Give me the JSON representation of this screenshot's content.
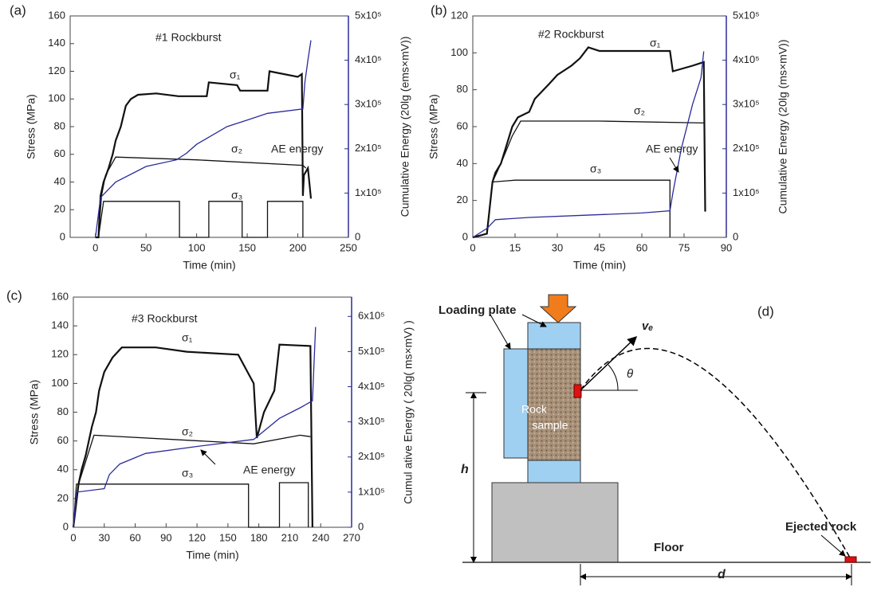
{
  "chart_data": [
    {
      "type": "line",
      "panel_label": "(a)",
      "title": "#1 Rockburst",
      "x_label": "Time (min)",
      "y_label": "Stress (MPa)",
      "y2_label": "Cumulative Energy (20lg (ems×mV))",
      "xlim": [
        -25,
        250
      ],
      "xticks": [
        0,
        50,
        100,
        150,
        200,
        250
      ],
      "ylim": [
        0,
        160
      ],
      "yticks": [
        0,
        20,
        40,
        60,
        80,
        100,
        120,
        140,
        160
      ],
      "y2lim": [
        0,
        500000
      ],
      "y2ticks": [
        0,
        {
          "value": 100000,
          "label": "1x10⁵"
        },
        {
          "value": 200000,
          "label": "2x10⁵"
        },
        {
          "value": 300000,
          "label": "3x10⁵"
        },
        {
          "value": 400000,
          "label": "4x10⁵"
        },
        {
          "value": 500000,
          "label": "5x10⁵"
        }
      ],
      "series": [
        {
          "name": "σ₁",
          "color": "#111111",
          "x": [
            0,
            3,
            5,
            8,
            13,
            17,
            20,
            25,
            30,
            35,
            42,
            60,
            82,
            110,
            112,
            140,
            143,
            170,
            172,
            200,
            204,
            205,
            206,
            210,
            213
          ],
          "values": [
            0,
            0,
            30,
            40,
            50,
            60,
            70,
            80,
            95,
            100,
            103,
            104,
            102,
            102,
            112,
            110,
            106,
            106,
            120,
            116,
            118,
            30,
            45,
            50,
            28
          ]
        },
        {
          "name": "σ₂",
          "color": "#111111",
          "x": [
            0,
            3,
            6,
            10,
            20,
            100,
            205,
            208
          ],
          "values": [
            0,
            0,
            30,
            45,
            58,
            56,
            52,
            50
          ]
        },
        {
          "name": "σ₃",
          "color": "#111111",
          "x": [
            0,
            3,
            8,
            83,
            83,
            112,
            112,
            145,
            145,
            170,
            170,
            205,
            205
          ],
          "values": [
            0,
            0,
            26,
            26,
            0,
            0,
            26,
            26,
            0,
            0,
            26,
            26,
            0
          ]
        },
        {
          "name": "AE energy",
          "color": "#2b2b9a",
          "axis": "y2",
          "x": [
            0,
            5,
            20,
            50,
            80,
            90,
            100,
            130,
            150,
            170,
            205,
            207,
            210,
            213
          ],
          "values": [
            0,
            90000,
            125000,
            160000,
            175000,
            190000,
            210000,
            250000,
            265000,
            280000,
            290000,
            350000,
            400000,
            445000
          ]
        }
      ]
    },
    {
      "type": "line",
      "panel_label": "(b)",
      "title": "#2 Rockburst",
      "x_label": "Time (min)",
      "y_label": "Stress (MPa)",
      "y2_label": "Cumulative Energy (20lg (ms×mV))",
      "xlim": [
        0,
        90
      ],
      "xticks": [
        0,
        15,
        30,
        45,
        60,
        75,
        90
      ],
      "ylim": [
        0,
        120
      ],
      "yticks": [
        0,
        20,
        40,
        60,
        80,
        100,
        120
      ],
      "y2lim": [
        0,
        500000
      ],
      "y2ticks": [
        0,
        {
          "value": 100000,
          "label": "1x10⁵"
        },
        {
          "value": 200000,
          "label": "2x10⁵"
        },
        {
          "value": 300000,
          "label": "3x10⁵"
        },
        {
          "value": 400000,
          "label": "4x10⁵"
        },
        {
          "value": 500000,
          "label": "5x10⁵"
        }
      ],
      "series": [
        {
          "name": "σ₁",
          "color": "#111111",
          "x": [
            0,
            5,
            7,
            8,
            10,
            12,
            14,
            16,
            20,
            22,
            27,
            30,
            35,
            38,
            41,
            45,
            70,
            71,
            78,
            82,
            82.5
          ],
          "values": [
            0,
            2,
            30,
            35,
            40,
            50,
            60,
            65,
            68,
            75,
            83,
            88,
            93,
            97,
            103,
            101,
            101,
            90,
            93,
            95,
            14
          ]
        },
        {
          "name": "σ₂",
          "color": "#111111",
          "x": [
            0,
            5,
            7,
            10,
            14,
            17,
            45,
            82
          ],
          "values": [
            0,
            2,
            30,
            40,
            55,
            63,
            63,
            62
          ]
        },
        {
          "name": "σ₃",
          "color": "#111111",
          "x": [
            0,
            5,
            7,
            15,
            70,
            70
          ],
          "values": [
            0,
            2,
            30,
            31,
            31,
            0
          ]
        },
        {
          "name": "AE energy",
          "color": "#2b2b9a",
          "axis": "y2",
          "x": [
            0,
            5,
            8,
            20,
            40,
            60,
            70,
            71,
            74,
            78,
            81,
            82
          ],
          "values": [
            0,
            20000,
            40000,
            45000,
            50000,
            55000,
            60000,
            100000,
            200000,
            300000,
            360000,
            420000
          ]
        }
      ]
    },
    {
      "type": "line",
      "panel_label": "(c)",
      "title": "#3 Rockburst",
      "x_label": "Time (min)",
      "y_label": "Stress (MPa)",
      "y2_label": "Cumul ative Energy ( 20lg( ms×mV) )",
      "xlim": [
        0,
        270
      ],
      "xticks": [
        0,
        30,
        60,
        90,
        120,
        150,
        180,
        210,
        240,
        270
      ],
      "ylim": [
        0,
        160
      ],
      "yticks": [
        0,
        20,
        40,
        60,
        80,
        100,
        120,
        140,
        160
      ],
      "y2lim": [
        0,
        655000
      ],
      "y2ticks": [
        0,
        {
          "value": 100000,
          "label": "1x10⁵"
        },
        {
          "value": 200000,
          "label": "2x10⁵"
        },
        {
          "value": 300000,
          "label": "3x10⁵"
        },
        {
          "value": 400000,
          "label": "4x10⁵"
        },
        {
          "value": 500000,
          "label": "5x10⁵"
        },
        {
          "value": 600000,
          "label": "6x10⁵"
        }
      ],
      "series": [
        {
          "name": "σ₁",
          "color": "#111111",
          "x": [
            0,
            5,
            8,
            12,
            15,
            18,
            22,
            25,
            30,
            38,
            47,
            65,
            80,
            110,
            160,
            175,
            178,
            185,
            195,
            200,
            230,
            232
          ],
          "values": [
            0,
            30,
            40,
            50,
            60,
            70,
            80,
            95,
            108,
            118,
            125,
            125,
            125,
            122,
            120,
            100,
            62,
            80,
            95,
            127,
            126,
            0
          ]
        },
        {
          "name": "σ₂",
          "color": "#111111",
          "x": [
            0,
            5,
            20,
            175,
            220,
            230
          ],
          "values": [
            0,
            30,
            64,
            58,
            64,
            63
          ]
        },
        {
          "name": "σ₃",
          "color": "#111111",
          "x": [
            0,
            3,
            170,
            170,
            200,
            200,
            228,
            228
          ],
          "values": [
            0,
            30,
            30,
            0,
            0,
            31,
            31,
            0
          ]
        },
        {
          "name": "AE energy",
          "color": "#2b2b9a",
          "axis": "y2",
          "x": [
            0,
            3,
            30,
            35,
            45,
            70,
            120,
            175,
            200,
            220,
            232,
            235
          ],
          "values": [
            0,
            100000,
            110000,
            150000,
            180000,
            210000,
            230000,
            250000,
            310000,
            340000,
            360000,
            570000
          ]
        }
      ]
    }
  ],
  "diagram": {
    "panel_label": "(d)",
    "loading_plate": "Loading plate",
    "rock_sample": [
      "Rock",
      "sample"
    ],
    "velocity": "vₑ",
    "angle": "θ",
    "height": "h",
    "distance": "d",
    "floor": "Floor",
    "ejected_rock": "Ejected rock"
  }
}
